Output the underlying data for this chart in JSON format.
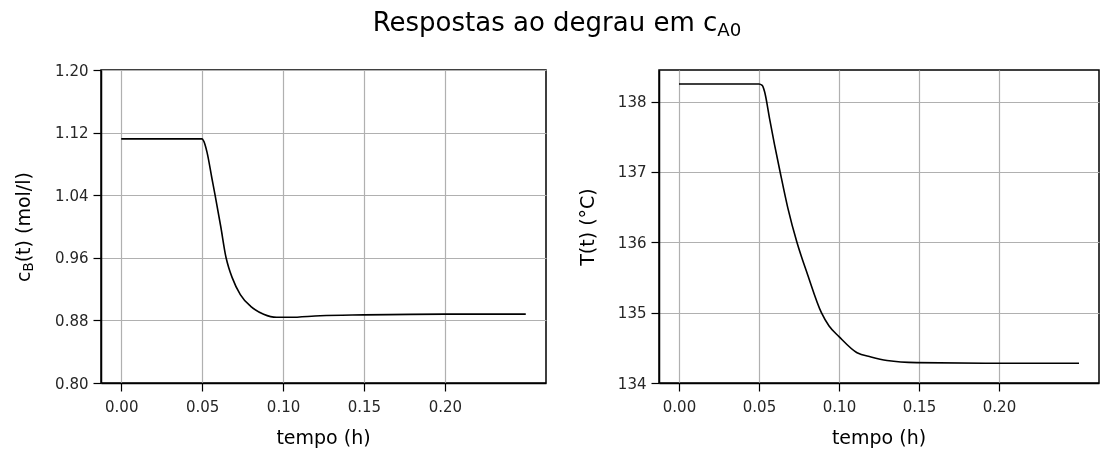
{
  "chart_data": [
    {
      "type": "line",
      "title": "Respostas ao degrau em c$_{A0}$",
      "xlabel": "tempo (h)",
      "ylabel": "c$_{B}$(t) (mol/l)",
      "x": [
        0,
        0.05,
        0.051,
        0.053,
        0.056,
        0.058,
        0.0615,
        0.0648,
        0.0665,
        0.0685,
        0.0736,
        0.08,
        0.088,
        0.096,
        0.104,
        0.123,
        0.15,
        0.2,
        0.25
      ],
      "series": [
        {
          "color": "#000000",
          "values": [
            1.112,
            1.112,
            1.109,
            1.095,
            1.062,
            1.04,
            1.0,
            0.96,
            0.947,
            0.935,
            0.913,
            0.898,
            0.888,
            0.884,
            0.884,
            0.886,
            0.887,
            0.888,
            0.888
          ]
        }
      ],
      "xlim": [
        -0.0125,
        0.2625
      ],
      "ylim": [
        0.8,
        1.2
      ],
      "xticks": [
        {
          "value": 0,
          "label": "0.00"
        },
        {
          "value": 0.05,
          "label": "0.05"
        },
        {
          "value": 0.1,
          "label": "0.10"
        },
        {
          "value": 0.15,
          "label": "0.15"
        },
        {
          "value": 0.2,
          "label": "0.20"
        }
      ],
      "yticks": [
        {
          "value": 0.8,
          "label": "0.80"
        },
        0.88,
        0.96,
        1.04,
        1.12,
        {
          "value": 1.2,
          "label": "1.20"
        }
      ],
      "grid": true
    },
    {
      "type": "line",
      "xlabel": "tempo (h)",
      "ylabel": "T(t) (°C)",
      "x": [
        0,
        0.05,
        0.052,
        0.0535,
        0.0566,
        0.0597,
        0.0632,
        0.068,
        0.0737,
        0.0804,
        0.089,
        0.0938,
        0.1,
        0.1113,
        0.12,
        0.13,
        0.1485,
        0.2,
        0.25
      ],
      "series": [
        {
          "color": "#000000",
          "values": [
            138.25,
            138.25,
            138.23,
            138.14,
            137.76,
            137.39,
            137.0,
            136.49,
            136.0,
            135.54,
            135.0,
            134.81,
            134.66,
            134.43,
            134.37,
            134.32,
            134.29,
            134.28,
            134.28
          ]
        }
      ],
      "xlim": [
        -0.0125,
        0.2625
      ],
      "ylim": [
        134,
        138.45
      ],
      "xticks": [
        {
          "value": 0,
          "label": "0.00"
        },
        {
          "value": 0.05,
          "label": "0.05"
        },
        {
          "value": 0.1,
          "label": "0.10"
        },
        {
          "value": 0.15,
          "label": "0.15"
        },
        {
          "value": 0.2,
          "label": "0.20"
        }
      ],
      "yticks": [
        134,
        135,
        136,
        137,
        138
      ],
      "grid": true
    }
  ]
}
